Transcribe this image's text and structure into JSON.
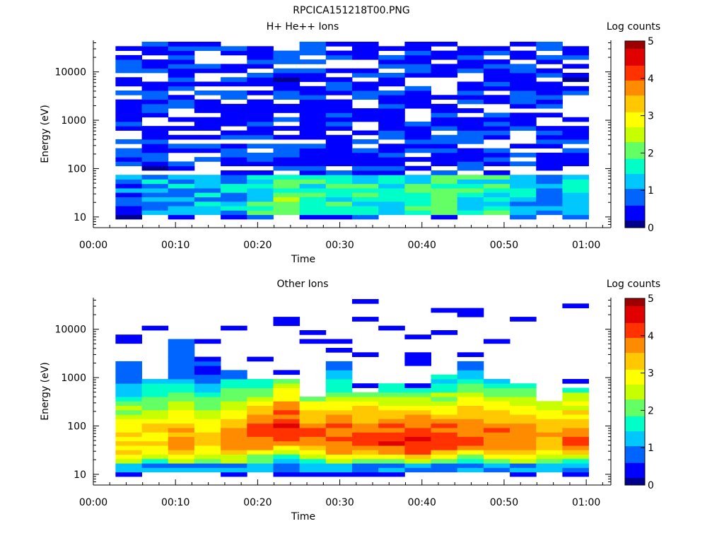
{
  "figure_title": "RPCICA151218T00.PNG",
  "colors": {
    "colormap": [
      "#00008c",
      "#0000ff",
      "#0064ff",
      "#00c8ff",
      "#00ffc8",
      "#64ff64",
      "#c8ff00",
      "#ffff00",
      "#ffc800",
      "#ff8c00",
      "#ff3200",
      "#e00000",
      "#9c0000"
    ],
    "axis": "#000000",
    "background": "#ffffff"
  },
  "chart_data": [
    {
      "type": "heatmap",
      "title": "H+ He++ Ions",
      "xlabel": "Time",
      "ylabel": "Energy (eV)",
      "x_tick_labels": [
        "00:00",
        "00:10",
        "00:20",
        "00:30",
        "00:40",
        "00:50",
        "01:00"
      ],
      "x_ticks_min": [
        0,
        10,
        20,
        30,
        40,
        50,
        60
      ],
      "xlim_min": [
        0,
        63
      ],
      "y_scale": "log",
      "y_tick_labels": [
        "10",
        "100",
        "1000",
        "10000"
      ],
      "y_ticks": [
        10,
        100,
        1000,
        10000
      ],
      "ylim": [
        6,
        45000
      ],
      "colorbar": {
        "label": "Log counts",
        "ticks": [
          "0",
          "1",
          "2",
          "3",
          "4",
          "5"
        ],
        "range": [
          0,
          5
        ]
      },
      "time_bins_start_min": [
        2.7,
        5.9,
        9.1,
        12.3,
        15.5,
        18.7,
        21.9,
        25.1,
        28.3,
        31.5,
        34.7,
        37.9,
        41.1,
        44.3,
        47.5,
        50.7,
        53.9,
        57.1
      ],
      "time_bin_width_min": 3.2,
      "energy_levels_approx": "log-spaced channels, ~10 eV to ~40000 eV",
      "profile": {
        "low_band_ev": [
          12,
          80
        ],
        "low_band_log_counts": [
          0.9,
          1.1,
          1.2,
          1.3,
          1.2,
          1.6,
          1.9,
          1.8,
          1.7,
          1.6,
          1.5,
          1.6,
          1.9,
          1.7,
          1.6,
          1.3,
          1.0,
          1.4
        ],
        "high_band_log_counts_approx": 0.6
      }
    },
    {
      "type": "heatmap",
      "title": "Other Ions",
      "xlabel": "Time",
      "ylabel": "Energy (eV)",
      "x_tick_labels": [
        "00:00",
        "00:10",
        "00:20",
        "00:30",
        "00:40",
        "00:50",
        "01:00"
      ],
      "x_ticks_min": [
        0,
        10,
        20,
        30,
        40,
        50,
        60
      ],
      "xlim_min": [
        0,
        63
      ],
      "y_scale": "log",
      "y_tick_labels": [
        "10",
        "100",
        "1000",
        "10000"
      ],
      "y_ticks": [
        10,
        100,
        1000,
        10000
      ],
      "ylim": [
        6,
        45000
      ],
      "colorbar": {
        "label": "Log counts",
        "ticks": [
          "0",
          "1",
          "2",
          "3",
          "4",
          "5"
        ],
        "range": [
          0,
          5
        ]
      },
      "time_bins_start_min": [
        2.7,
        5.9,
        9.1,
        12.3,
        15.5,
        18.7,
        21.9,
        25.1,
        28.3,
        31.5,
        34.7,
        37.9,
        41.1,
        44.3,
        47.5,
        50.7,
        53.9,
        57.1
      ],
      "time_bin_width_min": 3.2,
      "profile": {
        "peak_ev": [
          35,
          45,
          40,
          42,
          45,
          55,
          70,
          50,
          45,
          45,
          45,
          40,
          45,
          55,
          45,
          45,
          45,
          50
        ],
        "peak_log_counts": [
          3.3,
          3.2,
          3.6,
          3.3,
          3.7,
          4.0,
          4.4,
          4.0,
          4.1,
          4.2,
          4.2,
          4.3,
          4.1,
          4.0,
          3.9,
          3.8,
          3.7,
          3.9
        ],
        "upper_extent_ev": [
          2000,
          1000,
          6000,
          2000,
          1500,
          1000,
          1000,
          400,
          2000,
          500,
          800,
          600,
          1200,
          2000,
          1000,
          700,
          300,
          600
        ]
      }
    }
  ]
}
